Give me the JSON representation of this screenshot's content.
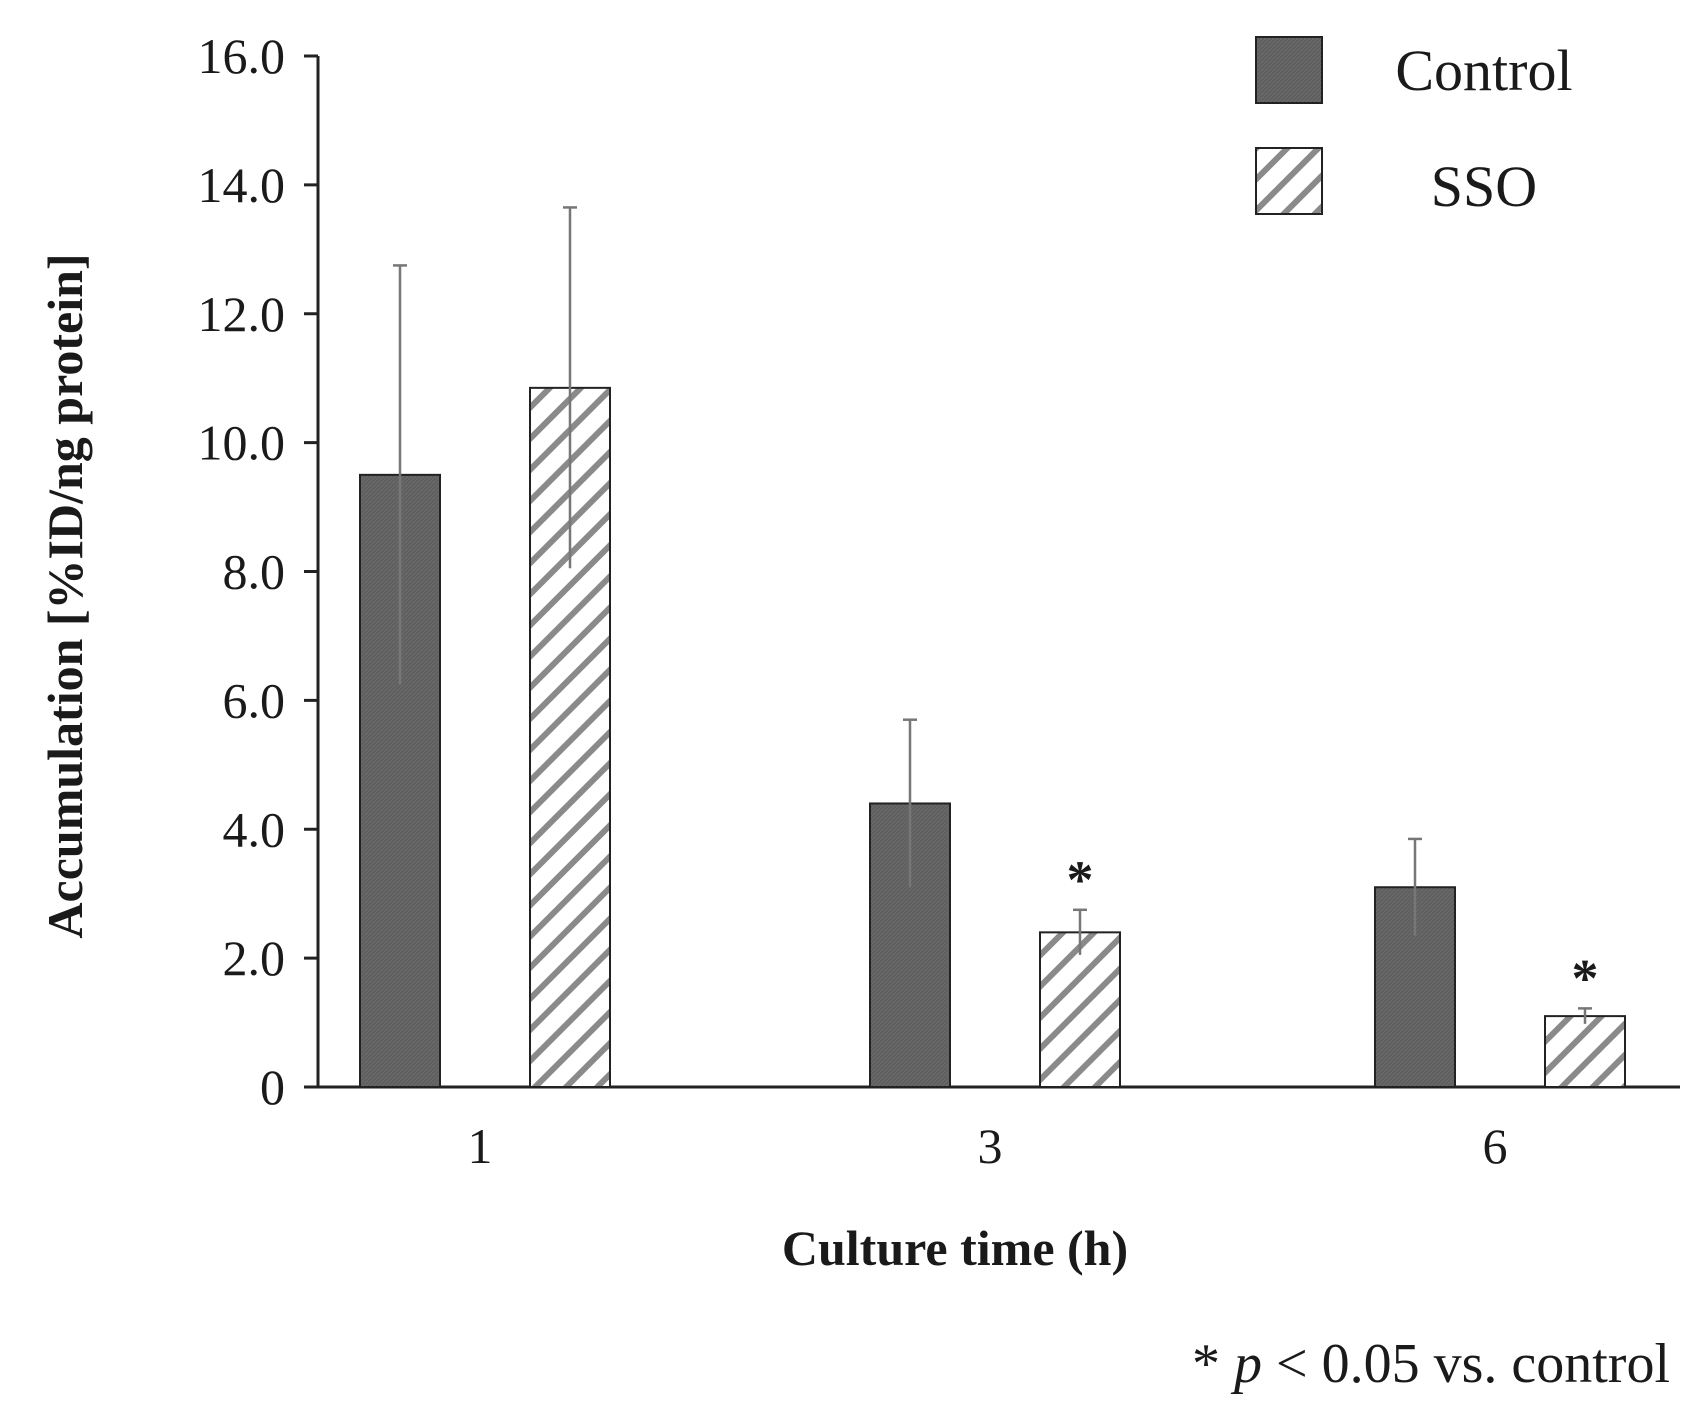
{
  "chart_data": {
    "type": "bar",
    "title": "",
    "xlabel": "Culture time (h)",
    "ylabel": "Accumulation [%ID/ng protein]",
    "categories": [
      "1",
      "3",
      "6"
    ],
    "ylim": [
      0,
      16
    ],
    "yticks": [
      0,
      2,
      4,
      6,
      8,
      10,
      12,
      14,
      16
    ],
    "ytick_labels": [
      "0",
      "2.0",
      "4.0",
      "6.0",
      "8.0",
      "10.0",
      "12.0",
      "14.0",
      "16.0"
    ],
    "grid": false,
    "legend_position": "top-right",
    "series": [
      {
        "name": "Control",
        "pattern": "solid-dark",
        "values": [
          9.5,
          4.4,
          3.1
        ],
        "errors": [
          3.25,
          1.3,
          0.75
        ],
        "significance": [
          "",
          "",
          ""
        ]
      },
      {
        "name": "SSO",
        "pattern": "hatched",
        "values": [
          10.85,
          2.4,
          1.1
        ],
        "errors": [
          2.8,
          0.35,
          0.12
        ],
        "significance": [
          "",
          "*",
          "*"
        ]
      }
    ],
    "footnote": {
      "prefix": "* ",
      "italic": "p",
      "suffix": " < 0.05 vs. control"
    }
  },
  "colors": {
    "control_fill": "#5f5f5f",
    "hatch_stroke": "#8a8a8a",
    "axis": "#222222",
    "error_bar": "#777777"
  }
}
